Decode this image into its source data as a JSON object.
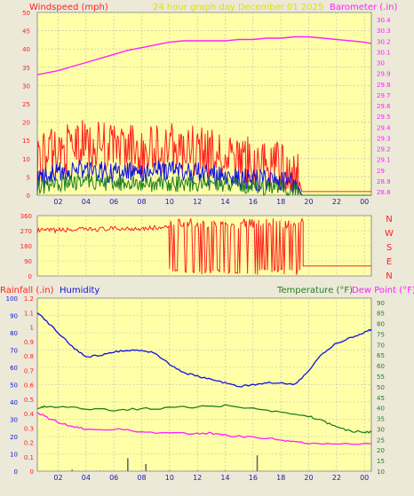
{
  "colors": {
    "plot_bg": "#ffffa8",
    "page_bg": "#ece9d8",
    "red": "#ff2020",
    "blue": "#1010e0",
    "green": "#208020",
    "magenta": "#ff20ff",
    "yellow_title": "#e0e000",
    "grid": "#b8b8b8"
  },
  "header": {
    "windspeed_label": "Windspeed (mph)",
    "title": "24 hour graph day   December 01 2025",
    "barometer_label": "Barometer (.in)"
  },
  "x_ticks": [
    "02",
    "04",
    "06",
    "08",
    "10",
    "12",
    "14",
    "16",
    "18",
    "20",
    "22",
    "00"
  ],
  "chart_data": [
    {
      "type": "line",
      "name": "wind-barometer",
      "x_range": [
        0.5,
        24.5
      ],
      "y_left": {
        "label": "Windspeed (mph)",
        "range": [
          0,
          50
        ],
        "ticks": [
          0,
          5,
          10,
          15,
          20,
          25,
          30,
          35,
          40,
          45,
          50
        ]
      },
      "y_right": {
        "label": "Barometer (.in)",
        "range": [
          29.775,
          30.45
        ],
        "ticks": [
          "28.8",
          "28.9",
          "29",
          "29.1",
          "29.2",
          "29.3",
          "29.4",
          "29.5",
          "29.6",
          "29.7",
          "29.8",
          "29.9",
          "30",
          "30.1",
          "30.2",
          "30.3",
          "30.4"
        ]
      },
      "series": [
        {
          "name": "Barometer",
          "color": "magenta",
          "axis": "right",
          "x": [
            0.5,
            1,
            2,
            3,
            4,
            5,
            6,
            7,
            8,
            9,
            10,
            11,
            12,
            13,
            14,
            15,
            16,
            17,
            18,
            19,
            20,
            21,
            22,
            23,
            24,
            24.5
          ],
          "y": [
            30.22,
            30.225,
            30.235,
            30.25,
            30.265,
            30.28,
            30.295,
            30.31,
            30.32,
            30.33,
            30.34,
            30.345,
            30.345,
            30.345,
            30.345,
            30.35,
            30.35,
            30.355,
            30.355,
            30.36,
            30.36,
            30.355,
            30.35,
            30.345,
            30.34,
            30.335
          ]
        },
        {
          "name": "Wind gust",
          "color": "red",
          "axis": "left",
          "x": [
            0.5,
            2,
            4,
            6,
            8,
            10,
            12,
            14,
            16,
            18,
            19.2,
            19.5,
            20,
            24.5
          ],
          "y": [
            10,
            12,
            14,
            13,
            12,
            13,
            12,
            10,
            9,
            8,
            6,
            1,
            1,
            1
          ]
        },
        {
          "name": "Wind average",
          "color": "blue",
          "axis": "left",
          "x": [
            0.5,
            2,
            4,
            6,
            8,
            10,
            12,
            14,
            16,
            18,
            19.2,
            19.5,
            24.5
          ],
          "y": [
            4,
            6,
            7,
            6,
            6,
            7,
            6,
            5,
            4,
            4,
            3,
            0,
            0
          ]
        },
        {
          "name": "Wind low",
          "color": "green",
          "axis": "left",
          "x": [
            0.5,
            2,
            4,
            6,
            8,
            10,
            12,
            14,
            16,
            18,
            19.2,
            19.5,
            24.5
          ],
          "y": [
            2,
            3,
            4,
            3,
            3,
            3,
            3,
            3,
            2,
            2,
            1,
            0,
            0
          ]
        }
      ]
    },
    {
      "type": "scatter",
      "name": "wind-direction",
      "x_range": [
        0.5,
        24.5
      ],
      "y_left": {
        "range": [
          0,
          360
        ],
        "ticks": [
          0,
          90,
          180,
          270,
          360
        ]
      },
      "y_right_labels": [
        "N",
        "W",
        "S",
        "E",
        "N"
      ],
      "series": [
        {
          "name": "Direction",
          "color": "red",
          "x": [
            0.5,
            2,
            4,
            6,
            8,
            10,
            10.3,
            10.5,
            10.8,
            11.2,
            11.5,
            12,
            12.3,
            12.6,
            13,
            13.3,
            13.6,
            14,
            14.4,
            14.8,
            15.2,
            15.6,
            16,
            16.3,
            16.6,
            17,
            17.3,
            17.6,
            18,
            18.3,
            18.6,
            19,
            19.4,
            19.6,
            24.5
          ],
          "y": [
            270,
            275,
            280,
            275,
            285,
            290,
            10,
            300,
            20,
            290,
            30,
            310,
            15,
            300,
            25,
            305,
            10,
            300,
            20,
            295,
            30,
            300,
            15,
            305,
            25,
            310,
            20,
            300,
            15,
            305,
            25,
            310,
            300,
            60,
            60
          ]
        }
      ]
    },
    {
      "type": "line",
      "name": "rain-humidity-temp",
      "header": {
        "rainfall_label": "Rainfall (.in)",
        "humidity_label": "Humidity",
        "temperature_label": "Temperature (°F)",
        "dewpoint_label": "Dew Point (°F)"
      },
      "x_range": [
        0.5,
        24.5
      ],
      "y_humidity": {
        "range": [
          0,
          100
        ],
        "ticks": [
          0,
          10,
          20,
          30,
          40,
          50,
          60,
          70,
          80,
          90,
          100
        ]
      },
      "y_rain": {
        "range": [
          0,
          1.2
        ],
        "ticks": [
          "0",
          "0.1",
          "0.2",
          "0.3",
          "0.4",
          "0.5",
          "0.6",
          "0.7",
          "0.8",
          "0.9",
          "1",
          "1.1",
          "1.2"
        ]
      },
      "y_temp": {
        "range": [
          10,
          92
        ],
        "ticks": [
          10,
          15,
          20,
          25,
          30,
          35,
          40,
          45,
          50,
          55,
          60,
          65,
          70,
          75,
          80,
          85,
          90
        ]
      },
      "series": [
        {
          "name": "Humidity",
          "color": "blue",
          "axis": "humidity",
          "x": [
            0.5,
            1,
            2,
            3,
            4,
            5,
            6,
            7,
            8,
            9,
            10,
            11,
            12,
            13,
            14,
            15,
            16,
            17,
            18,
            19,
            20,
            21,
            22,
            23,
            24,
            24.5
          ],
          "y": [
            92,
            88,
            80,
            72,
            66,
            67,
            69,
            70,
            70,
            68,
            62,
            57,
            55,
            53,
            51,
            49,
            50,
            51,
            51,
            50,
            58,
            68,
            74,
            77,
            80,
            82
          ]
        },
        {
          "name": "Temperature",
          "color": "green",
          "axis": "temp",
          "x": [
            0.5,
            1,
            2,
            4,
            6,
            8,
            10,
            12,
            14,
            16,
            18,
            20,
            21,
            22,
            23,
            24,
            24.5
          ],
          "y": [
            40,
            40.5,
            40.5,
            39.5,
            39,
            39.5,
            40,
            40.5,
            41,
            40,
            38,
            36,
            34,
            31,
            29,
            28.5,
            28.5
          ]
        },
        {
          "name": "Dew Point",
          "color": "magenta",
          "axis": "temp",
          "x": [
            0.5,
            1,
            2,
            3,
            4,
            6,
            8,
            10,
            12,
            13,
            14,
            16,
            18,
            19,
            20,
            22,
            24,
            24.5
          ],
          "y": [
            38,
            36,
            33,
            31,
            30,
            30,
            28.5,
            28,
            28,
            28,
            27,
            26,
            25,
            24,
            23,
            23,
            23,
            23
          ]
        },
        {
          "name": "Rainfall",
          "color": "blue",
          "axis": "rain",
          "x": [
            3,
            5,
            7,
            8.3,
            10,
            12,
            14,
            16.3
          ],
          "y": [
            0.01,
            0.003,
            0.09,
            0.05,
            0.004,
            0.004,
            0.004,
            0.11
          ]
        }
      ]
    }
  ]
}
